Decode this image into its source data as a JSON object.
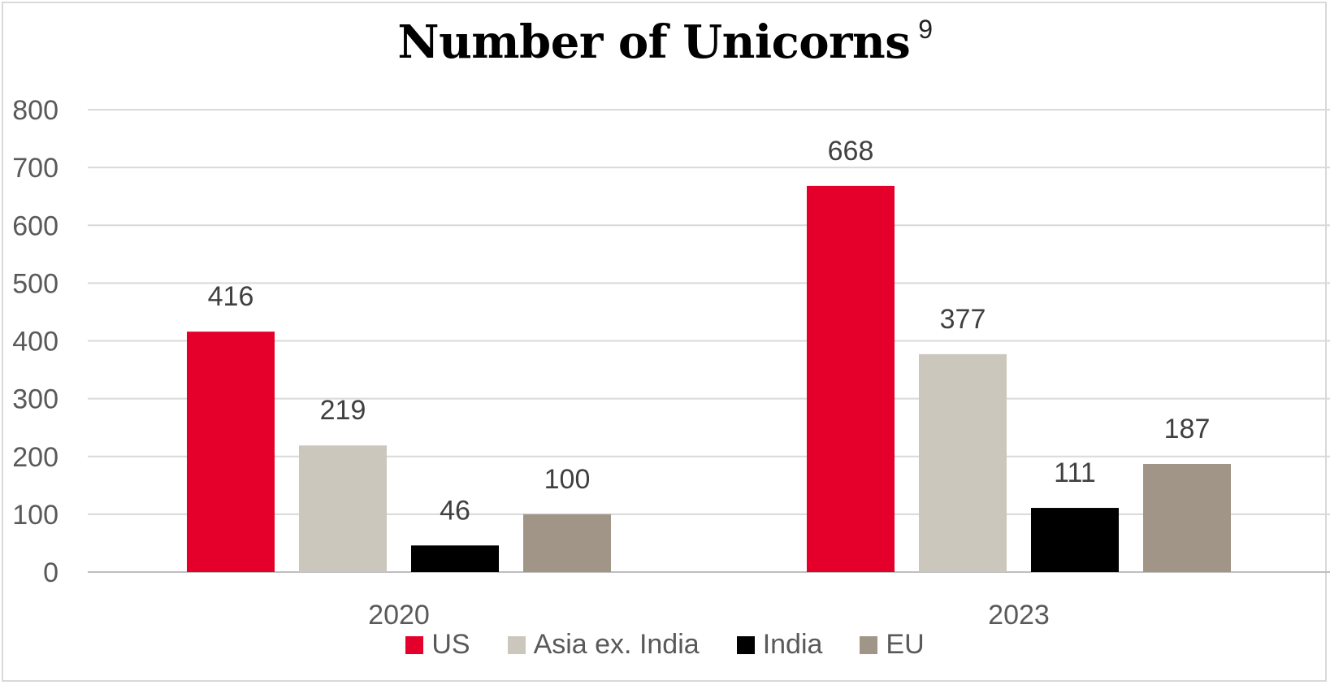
{
  "chart_data": {
    "type": "bar",
    "title": "Number of Unicorns",
    "title_superscript": "9",
    "categories": [
      "2020",
      "2023"
    ],
    "series": [
      {
        "name": "US",
        "values": [
          416,
          668
        ],
        "color": "#e4002b"
      },
      {
        "name": "Asia ex. India",
        "values": [
          219,
          377
        ],
        "color": "#cbc7bd"
      },
      {
        "name": "India",
        "values": [
          46,
          111
        ],
        "color": "#000000"
      },
      {
        "name": "EU",
        "values": [
          100,
          187
        ],
        "color": "#a09586"
      }
    ],
    "ylim": [
      0,
      800
    ],
    "yticks": [
      0,
      100,
      200,
      300,
      400,
      500,
      600,
      700,
      800
    ],
    "grid": true,
    "legend": "bottom",
    "data_labels": true
  }
}
